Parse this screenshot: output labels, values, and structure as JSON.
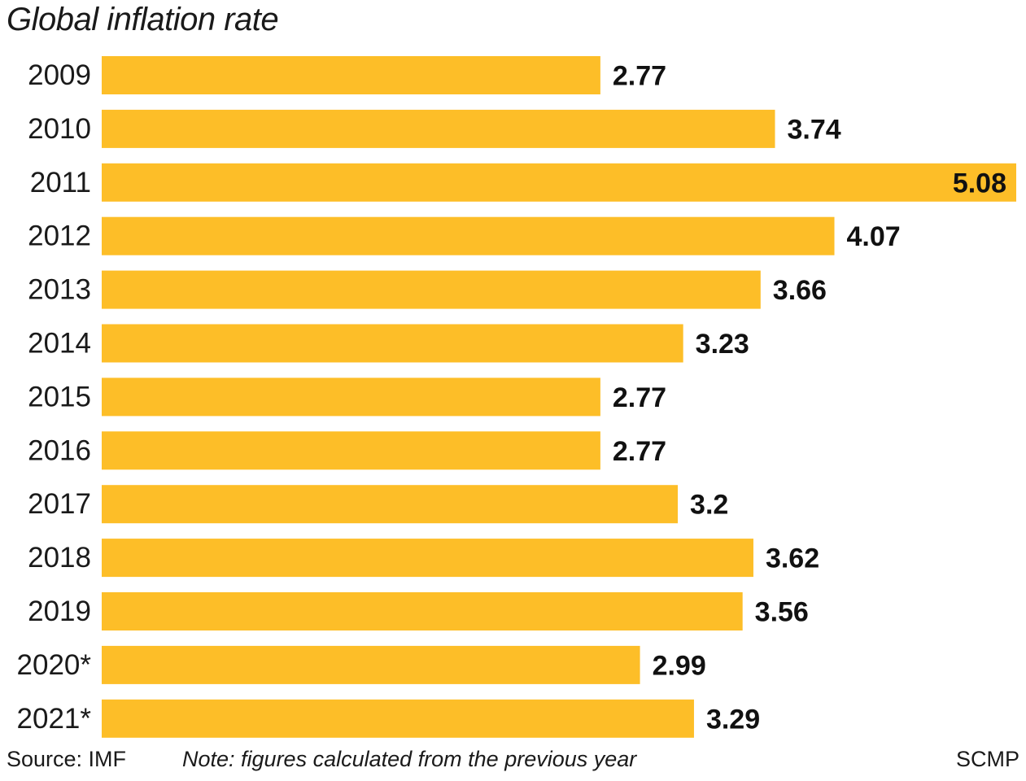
{
  "chart_data": {
    "type": "bar",
    "orientation": "horizontal",
    "title": "Global inflation rate",
    "xlabel": "",
    "ylabel": "",
    "categories": [
      "2009",
      "2010",
      "2011",
      "2012",
      "2013",
      "2014",
      "2015",
      "2016",
      "2017",
      "2018",
      "2019",
      "2020*",
      "2021*"
    ],
    "values": [
      2.77,
      3.74,
      5.08,
      4.07,
      3.66,
      3.23,
      2.77,
      2.77,
      3.2,
      3.62,
      3.56,
      2.99,
      3.29
    ],
    "value_labels": [
      "2.77",
      "3.74",
      "5.08",
      "4.07",
      "3.66",
      "3.23",
      "2.77",
      "2.77",
      "3.2",
      "3.62",
      "3.56",
      "2.99",
      "3.29"
    ],
    "xlim": [
      0,
      5.08
    ],
    "grid": false,
    "legend": "none",
    "bar_color": "#FDBE28",
    "label_color": "#111111"
  },
  "footer": {
    "source": "Source: IMF",
    "note": "Note: figures calculated from the previous year",
    "credit": "SCMP"
  }
}
